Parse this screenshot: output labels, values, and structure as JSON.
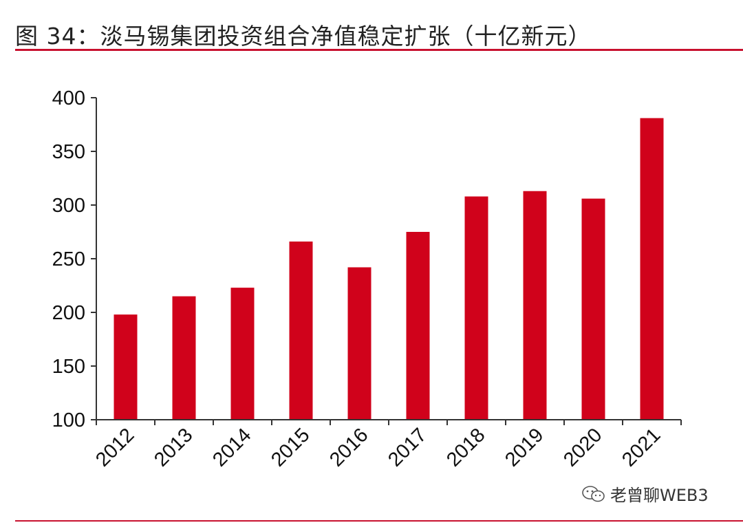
{
  "header": {
    "title": "图 34：淡马锡集团投资组合净值稳定扩张（十亿新元）"
  },
  "watermark": {
    "text": "老曾聊WEB3",
    "icon": "wechat-icon"
  },
  "colors": {
    "bar": "#d0021b",
    "rule": "#c8102e",
    "axis": "#333333"
  },
  "chart_data": {
    "type": "bar",
    "title": "图 34：淡马锡集团投资组合净值稳定扩张（十亿新元）",
    "xlabel": "",
    "ylabel": "",
    "categories": [
      "2012",
      "2013",
      "2014",
      "2015",
      "2016",
      "2017",
      "2018",
      "2019",
      "2020",
      "2021"
    ],
    "values": [
      198,
      215,
      223,
      266,
      242,
      275,
      308,
      313,
      306,
      381
    ],
    "ylim": [
      100,
      400
    ],
    "yticks": [
      100,
      150,
      200,
      250,
      300,
      350,
      400
    ],
    "ytick_labels": [
      "100",
      "150",
      "200",
      "250",
      "300",
      "350",
      "400"
    ],
    "grid": false,
    "legend": "none"
  }
}
